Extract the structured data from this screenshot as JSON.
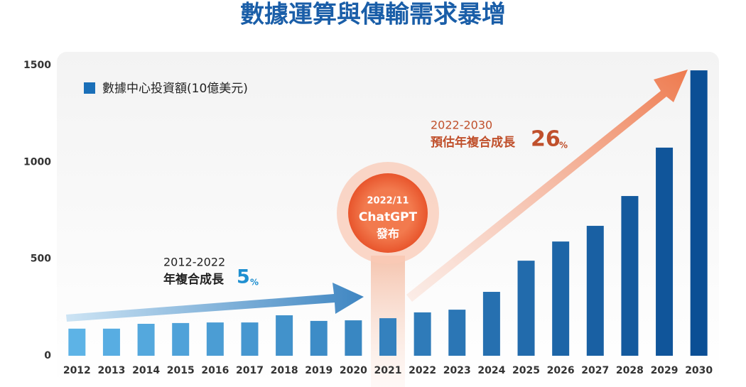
{
  "chart_data": {
    "type": "bar",
    "title": "數據運算與傳輸需求暴增",
    "categories": [
      "2012",
      "2013",
      "2014",
      "2015",
      "2016",
      "2017",
      "2018",
      "2019",
      "2020",
      "2021",
      "2022",
      "2023",
      "2024",
      "2025",
      "2026",
      "2027",
      "2028",
      "2029",
      "2030"
    ],
    "series": [
      {
        "name": "數據中心投資額(10億美元)",
        "color": "#1a6fb8",
        "values": [
          140,
          140,
          165,
          169,
          172,
          172,
          209,
          180,
          183,
          194,
          224,
          238,
          330,
          491,
          590,
          671,
          825,
          1075,
          1474
        ]
      }
    ],
    "bar_color_start": "#5db3e6",
    "bar_color_end": "#0b4f95",
    "ylim": [
      0,
      1500
    ],
    "yticks": [
      0,
      500,
      1000,
      1500
    ],
    "annotations": {
      "past_period": "2012-2022",
      "past_label": "年複合成長",
      "past_value": 5,
      "past_unit": "%",
      "future_period": "2022-2030",
      "future_label": "預估年複合成長",
      "future_value": 26,
      "future_unit": "%",
      "event_date": "2022/11",
      "event_name": "ChatGPT",
      "event_action": "發布"
    }
  }
}
